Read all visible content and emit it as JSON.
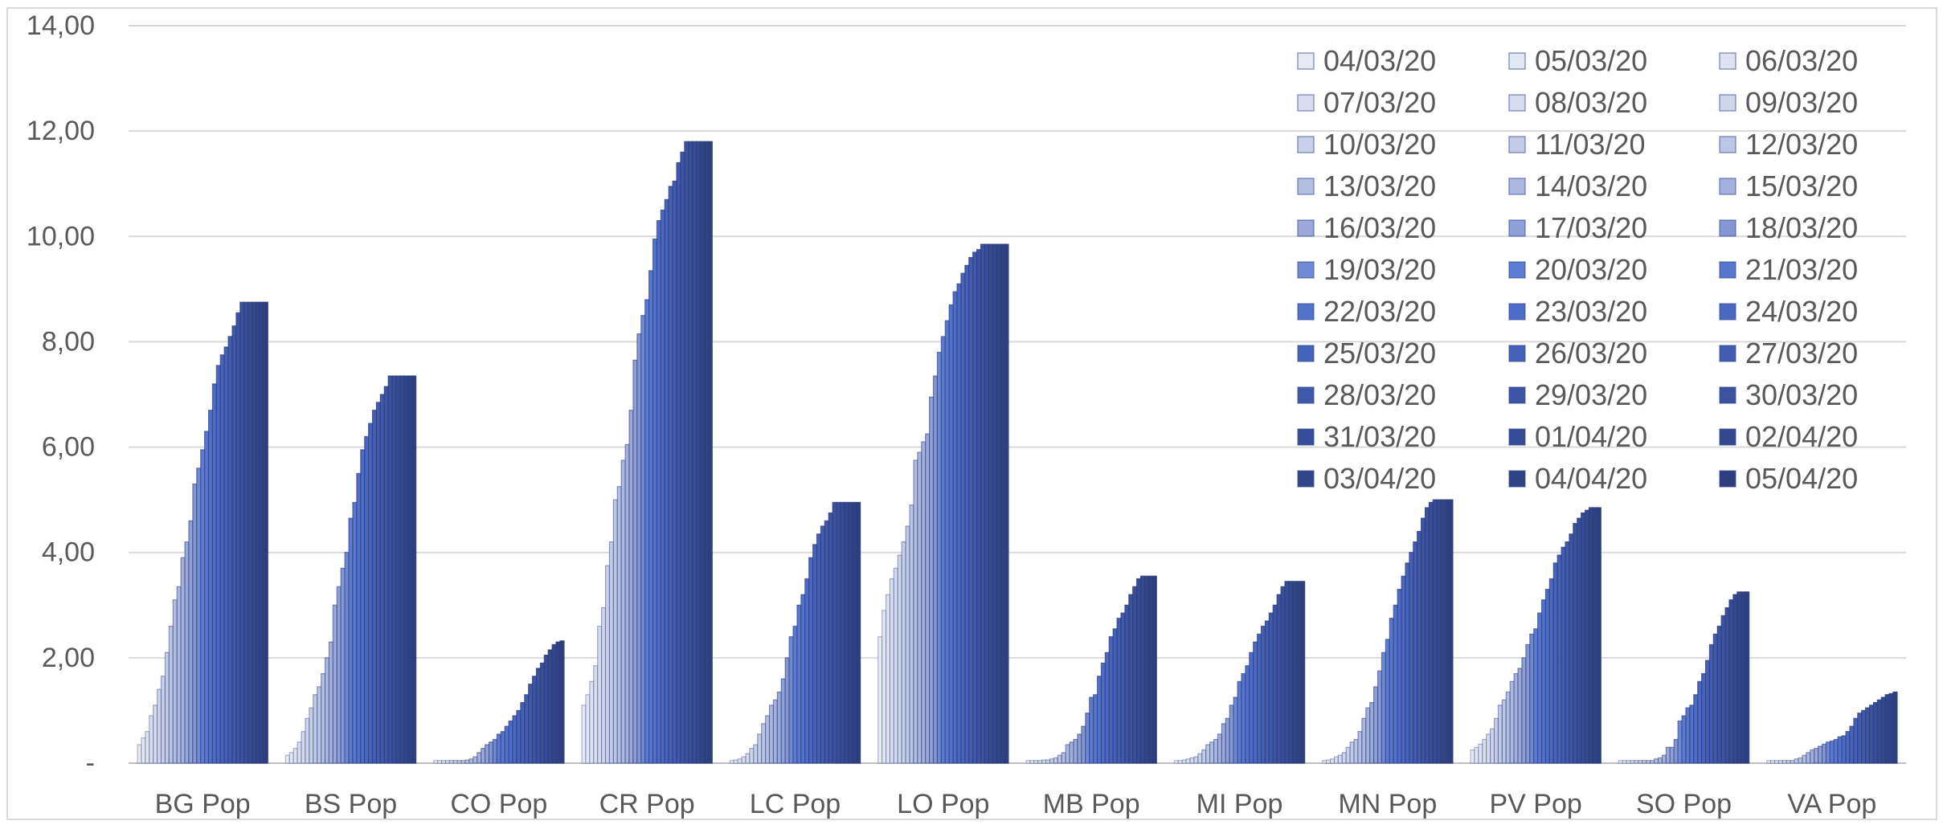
{
  "chart_data": {
    "type": "bar",
    "categories": [
      "BG Pop",
      "BS Pop",
      "CO Pop",
      "CR Pop",
      "LC Pop",
      "LO Pop",
      "MB Pop",
      "MI Pop",
      "MN Pop",
      "PV Pop",
      "SO Pop",
      "VA Pop"
    ],
    "ylim": [
      0,
      14
    ],
    "y_ticks": [
      "-",
      "2,00",
      "4,00",
      "6,00",
      "8,00",
      "10,00",
      "12,00",
      "14,00"
    ],
    "grid": true,
    "legend_position": "top-right",
    "series": [
      {
        "name": "04/03/20",
        "color": "#e7eaf4",
        "values": [
          0.35,
          0.15,
          0.05,
          1.1,
          0.05,
          2.4,
          0.05,
          0.05,
          0.05,
          0.25,
          0.05,
          0.05
        ]
      },
      {
        "name": "05/03/20",
        "color": "#e3e7f3",
        "values": [
          0.48,
          0.2,
          0.05,
          1.3,
          0.06,
          2.9,
          0.05,
          0.05,
          0.06,
          0.3,
          0.05,
          0.05
        ]
      },
      {
        "name": "06/03/20",
        "color": "#dfe3f1",
        "values": [
          0.6,
          0.28,
          0.05,
          1.55,
          0.08,
          3.2,
          0.05,
          0.06,
          0.08,
          0.36,
          0.05,
          0.05
        ]
      },
      {
        "name": "07/03/20",
        "color": "#dadff0",
        "values": [
          0.9,
          0.4,
          0.05,
          1.85,
          0.12,
          3.5,
          0.05,
          0.08,
          0.12,
          0.45,
          0.05,
          0.05
        ]
      },
      {
        "name": "08/03/20",
        "color": "#d5dbee",
        "values": [
          1.1,
          0.6,
          0.05,
          2.6,
          0.18,
          3.7,
          0.06,
          0.1,
          0.15,
          0.55,
          0.05,
          0.05
        ]
      },
      {
        "name": "09/03/20",
        "color": "#cfd6ec",
        "values": [
          1.4,
          0.85,
          0.05,
          2.95,
          0.28,
          3.95,
          0.06,
          0.12,
          0.2,
          0.65,
          0.05,
          0.05
        ]
      },
      {
        "name": "10/03/20",
        "color": "#c9d1ea",
        "values": [
          1.65,
          1.05,
          0.05,
          3.75,
          0.35,
          4.2,
          0.08,
          0.18,
          0.3,
          0.85,
          0.05,
          0.05
        ]
      },
      {
        "name": "11/03/20",
        "color": "#c2cbe7",
        "values": [
          2.1,
          1.3,
          0.05,
          4.2,
          0.55,
          4.5,
          0.1,
          0.25,
          0.4,
          1.1,
          0.05,
          0.08
        ]
      },
      {
        "name": "12/03/20",
        "color": "#bbc5e5",
        "values": [
          2.6,
          1.45,
          0.06,
          5.0,
          0.75,
          4.9,
          0.15,
          0.35,
          0.45,
          1.2,
          0.05,
          0.1
        ]
      },
      {
        "name": "13/03/20",
        "color": "#b3bee2",
        "values": [
          3.1,
          1.7,
          0.08,
          5.25,
          0.9,
          5.75,
          0.2,
          0.4,
          0.6,
          1.35,
          0.08,
          0.15
        ]
      },
      {
        "name": "14/03/20",
        "color": "#acb8e0",
        "values": [
          3.35,
          2.0,
          0.12,
          5.75,
          1.1,
          5.9,
          0.35,
          0.45,
          0.85,
          1.55,
          0.1,
          0.2
        ]
      },
      {
        "name": "15/03/20",
        "color": "#a4b1dd",
        "values": [
          3.9,
          2.3,
          0.2,
          6.05,
          1.2,
          6.1,
          0.4,
          0.55,
          1.05,
          1.7,
          0.15,
          0.25
        ]
      },
      {
        "name": "16/03/20",
        "color": "#9aa9d9",
        "values": [
          4.2,
          3.0,
          0.28,
          6.7,
          1.35,
          6.25,
          0.45,
          0.75,
          1.15,
          1.8,
          0.3,
          0.28
        ]
      },
      {
        "name": "17/03/20",
        "color": "#8ea0d6",
        "values": [
          4.6,
          3.35,
          0.35,
          7.65,
          1.6,
          6.95,
          0.55,
          0.85,
          1.45,
          2.0,
          0.3,
          0.32
        ]
      },
      {
        "name": "18/03/20",
        "color": "#8398d3",
        "values": [
          5.3,
          3.7,
          0.4,
          8.15,
          2.0,
          7.35,
          0.7,
          1.1,
          1.75,
          2.25,
          0.45,
          0.36
        ]
      },
      {
        "name": "19/03/20",
        "color": "#6f8ad4",
        "values": [
          5.6,
          4.0,
          0.45,
          8.5,
          2.4,
          7.8,
          0.95,
          1.25,
          2.1,
          2.45,
          0.8,
          0.4
        ]
      },
      {
        "name": "20/03/20",
        "color": "#5b7ad2",
        "values": [
          5.95,
          4.65,
          0.55,
          8.8,
          2.6,
          8.1,
          1.25,
          1.55,
          2.35,
          2.55,
          0.9,
          0.42
        ]
      },
      {
        "name": "21/03/20",
        "color": "#5776cf",
        "values": [
          6.3,
          4.95,
          0.6,
          9.35,
          3.0,
          8.4,
          1.3,
          1.7,
          2.75,
          2.85,
          1.05,
          0.45
        ]
      },
      {
        "name": "22/03/20",
        "color": "#5071cc",
        "values": [
          6.7,
          5.5,
          0.7,
          9.95,
          3.2,
          8.7,
          1.65,
          1.85,
          3.0,
          3.1,
          1.1,
          0.5
        ]
      },
      {
        "name": "23/03/20",
        "color": "#4b6cc8",
        "values": [
          7.2,
          5.95,
          0.8,
          10.3,
          3.5,
          8.95,
          1.9,
          2.1,
          3.3,
          3.3,
          1.3,
          0.52
        ]
      },
      {
        "name": "24/03/20",
        "color": "#4a68c2",
        "values": [
          7.55,
          6.2,
          0.9,
          10.5,
          3.9,
          9.1,
          2.1,
          2.3,
          3.55,
          3.5,
          1.55,
          0.6
        ]
      },
      {
        "name": "25/03/20",
        "color": "#4764bd",
        "values": [
          7.75,
          6.45,
          1.0,
          10.7,
          4.15,
          9.3,
          2.4,
          2.45,
          3.8,
          3.8,
          1.7,
          0.7
        ]
      },
      {
        "name": "26/03/20",
        "color": "#4460b7",
        "values": [
          7.9,
          6.7,
          1.15,
          10.95,
          4.35,
          9.45,
          2.55,
          2.6,
          4.0,
          3.95,
          1.95,
          0.85
        ]
      },
      {
        "name": "27/03/20",
        "color": "#415cb1",
        "values": [
          8.1,
          6.85,
          1.3,
          11.05,
          4.5,
          9.6,
          2.75,
          2.7,
          4.2,
          4.1,
          2.25,
          0.95
        ]
      },
      {
        "name": "28/03/20",
        "color": "#3f59ab",
        "values": [
          8.3,
          7.0,
          1.5,
          11.4,
          4.6,
          9.7,
          2.85,
          2.85,
          4.4,
          4.2,
          2.45,
          1.0
        ]
      },
      {
        "name": "29/03/20",
        "color": "#3c55a5",
        "values": [
          8.55,
          7.15,
          1.65,
          11.6,
          4.75,
          9.75,
          3.0,
          3.0,
          4.65,
          4.35,
          2.6,
          1.05
        ]
      },
      {
        "name": "30/03/20",
        "color": "#3a52a0",
        "values": [
          8.75,
          7.35,
          1.8,
          11.8,
          4.95,
          9.85,
          3.2,
          3.2,
          4.85,
          4.55,
          2.8,
          1.1
        ]
      },
      {
        "name": "31/03/20",
        "color": "#374e9a",
        "values": [
          8.75,
          7.35,
          1.9,
          11.8,
          4.95,
          9.85,
          3.35,
          3.35,
          4.95,
          4.65,
          2.95,
          1.15
        ]
      },
      {
        "name": "01/04/20",
        "color": "#354b95",
        "values": [
          8.75,
          7.35,
          2.05,
          11.8,
          4.95,
          9.85,
          3.5,
          3.45,
          5.0,
          4.75,
          3.1,
          1.2
        ]
      },
      {
        "name": "02/04/20",
        "color": "#33488f",
        "values": [
          8.75,
          7.35,
          2.15,
          11.8,
          4.95,
          9.85,
          3.55,
          3.45,
          5.0,
          4.8,
          3.2,
          1.25
        ]
      },
      {
        "name": "03/04/20",
        "color": "#31458a",
        "values": [
          8.75,
          7.35,
          2.25,
          11.8,
          4.95,
          9.85,
          3.55,
          3.45,
          5.0,
          4.85,
          3.25,
          1.3
        ]
      },
      {
        "name": "04/04/20",
        "color": "#2f4285",
        "values": [
          8.75,
          7.35,
          2.3,
          11.8,
          4.95,
          9.85,
          3.55,
          3.45,
          5.0,
          4.85,
          3.25,
          1.32
        ]
      },
      {
        "name": "05/04/20",
        "color": "#2d3f80",
        "values": [
          8.75,
          7.35,
          2.32,
          11.8,
          4.95,
          9.85,
          3.55,
          3.45,
          5.0,
          4.85,
          3.25,
          1.35
        ]
      }
    ]
  }
}
